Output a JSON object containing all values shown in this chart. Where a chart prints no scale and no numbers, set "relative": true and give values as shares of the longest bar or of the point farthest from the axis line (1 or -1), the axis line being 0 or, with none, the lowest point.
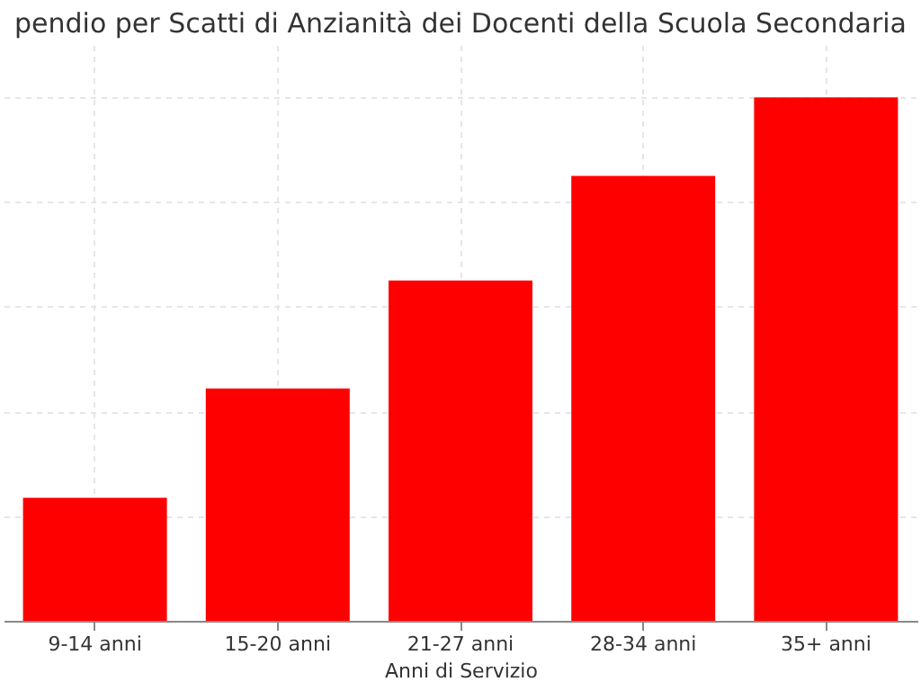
{
  "chart_data": {
    "type": "bar",
    "title": "pendio per Scatti di Anzianità dei Docenti della Scuola Secondaria",
    "xlabel": "Anni di Servizio",
    "categories": [
      "9-14 anni",
      "15-20 anni",
      "21-27 anni",
      "28-34 anni",
      "35+ anni"
    ],
    "values": [
      0.235,
      0.444,
      0.65,
      0.85,
      1
    ],
    "color": "#ff0000",
    "relative": true,
    "grid": true
  }
}
